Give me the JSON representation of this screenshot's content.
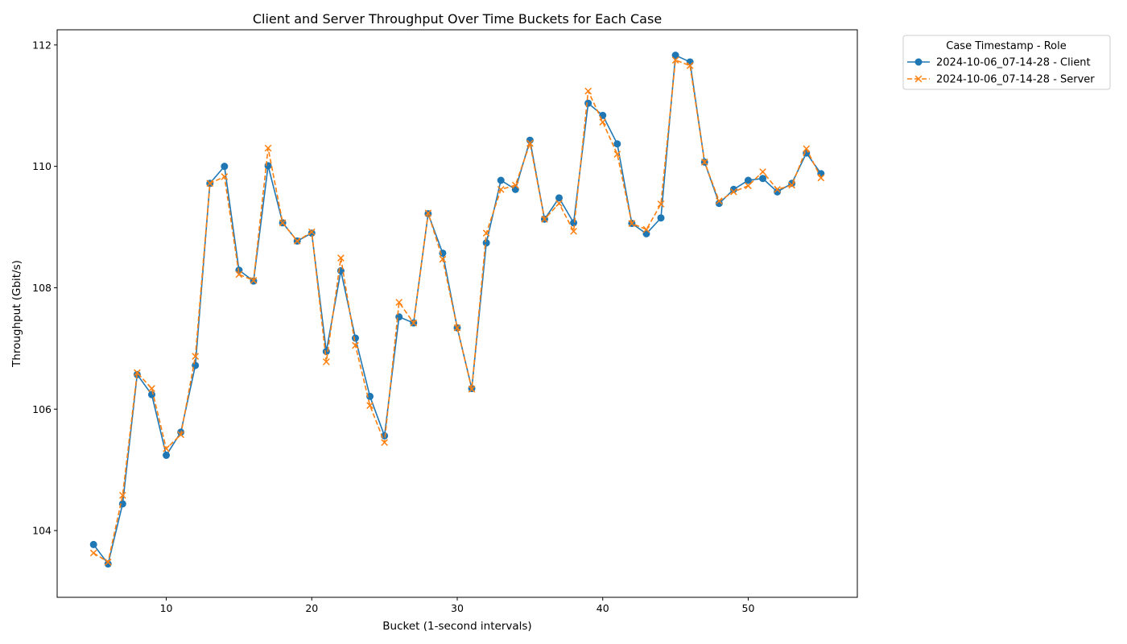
{
  "chart_data": {
    "type": "line",
    "title": "Client and Server Throughput Over Time Buckets for Each Case",
    "xlabel": "Bucket (1-second intervals)",
    "ylabel": "Throughput (Gbit/s)",
    "xlim": [
      2.5,
      57.5
    ],
    "ylim": [
      102.9,
      112.25
    ],
    "xticks": [
      10,
      20,
      30,
      40,
      50
    ],
    "yticks": [
      104,
      106,
      108,
      110,
      112
    ],
    "grid": false,
    "legend": {
      "title": "Case Timestamp - Role",
      "placement": "outside-top-right"
    },
    "x": [
      5,
      6,
      7,
      8,
      9,
      10,
      11,
      12,
      13,
      14,
      15,
      16,
      17,
      18,
      19,
      20,
      21,
      22,
      23,
      24,
      25,
      26,
      27,
      28,
      29,
      30,
      31,
      32,
      33,
      34,
      35,
      36,
      37,
      38,
      39,
      40,
      41,
      42,
      43,
      44,
      45,
      46,
      47,
      48,
      49,
      50,
      51,
      52,
      53,
      54,
      55
    ],
    "series": [
      {
        "name": "2024-10-06_07-14-28 - Client",
        "color": "#1f77b4",
        "marker": "circle",
        "linestyle": "solid",
        "values": [
          103.77,
          103.45,
          104.44,
          106.57,
          106.24,
          105.24,
          105.62,
          106.72,
          109.72,
          110.0,
          108.29,
          108.11,
          110.01,
          109.07,
          108.77,
          108.9,
          106.95,
          108.28,
          107.17,
          106.21,
          105.56,
          107.52,
          107.42,
          109.22,
          108.57,
          107.34,
          106.34,
          108.74,
          109.77,
          109.62,
          110.43,
          109.13,
          109.48,
          109.07,
          111.04,
          110.84,
          110.37,
          109.06,
          108.89,
          109.15,
          111.83,
          111.72,
          110.07,
          109.39,
          109.62,
          109.77,
          109.8,
          109.58,
          109.72,
          110.22,
          109.88
        ]
      },
      {
        "name": "2024-10-06_07-14-28 - Server",
        "color": "#ff7f0e",
        "marker": "x",
        "linestyle": "dashed",
        "values": [
          103.63,
          103.48,
          104.58,
          106.6,
          106.34,
          105.35,
          105.58,
          106.87,
          109.72,
          109.83,
          108.22,
          108.12,
          110.3,
          109.07,
          108.77,
          108.92,
          106.78,
          108.49,
          107.05,
          106.06,
          105.45,
          107.76,
          107.42,
          109.23,
          108.47,
          107.34,
          106.33,
          108.9,
          109.62,
          109.69,
          110.38,
          109.13,
          109.39,
          108.93,
          111.24,
          110.73,
          110.2,
          109.06,
          108.96,
          109.38,
          111.75,
          111.66,
          110.07,
          109.43,
          109.58,
          109.68,
          109.91,
          109.62,
          109.69,
          110.29,
          109.81
        ]
      }
    ]
  }
}
